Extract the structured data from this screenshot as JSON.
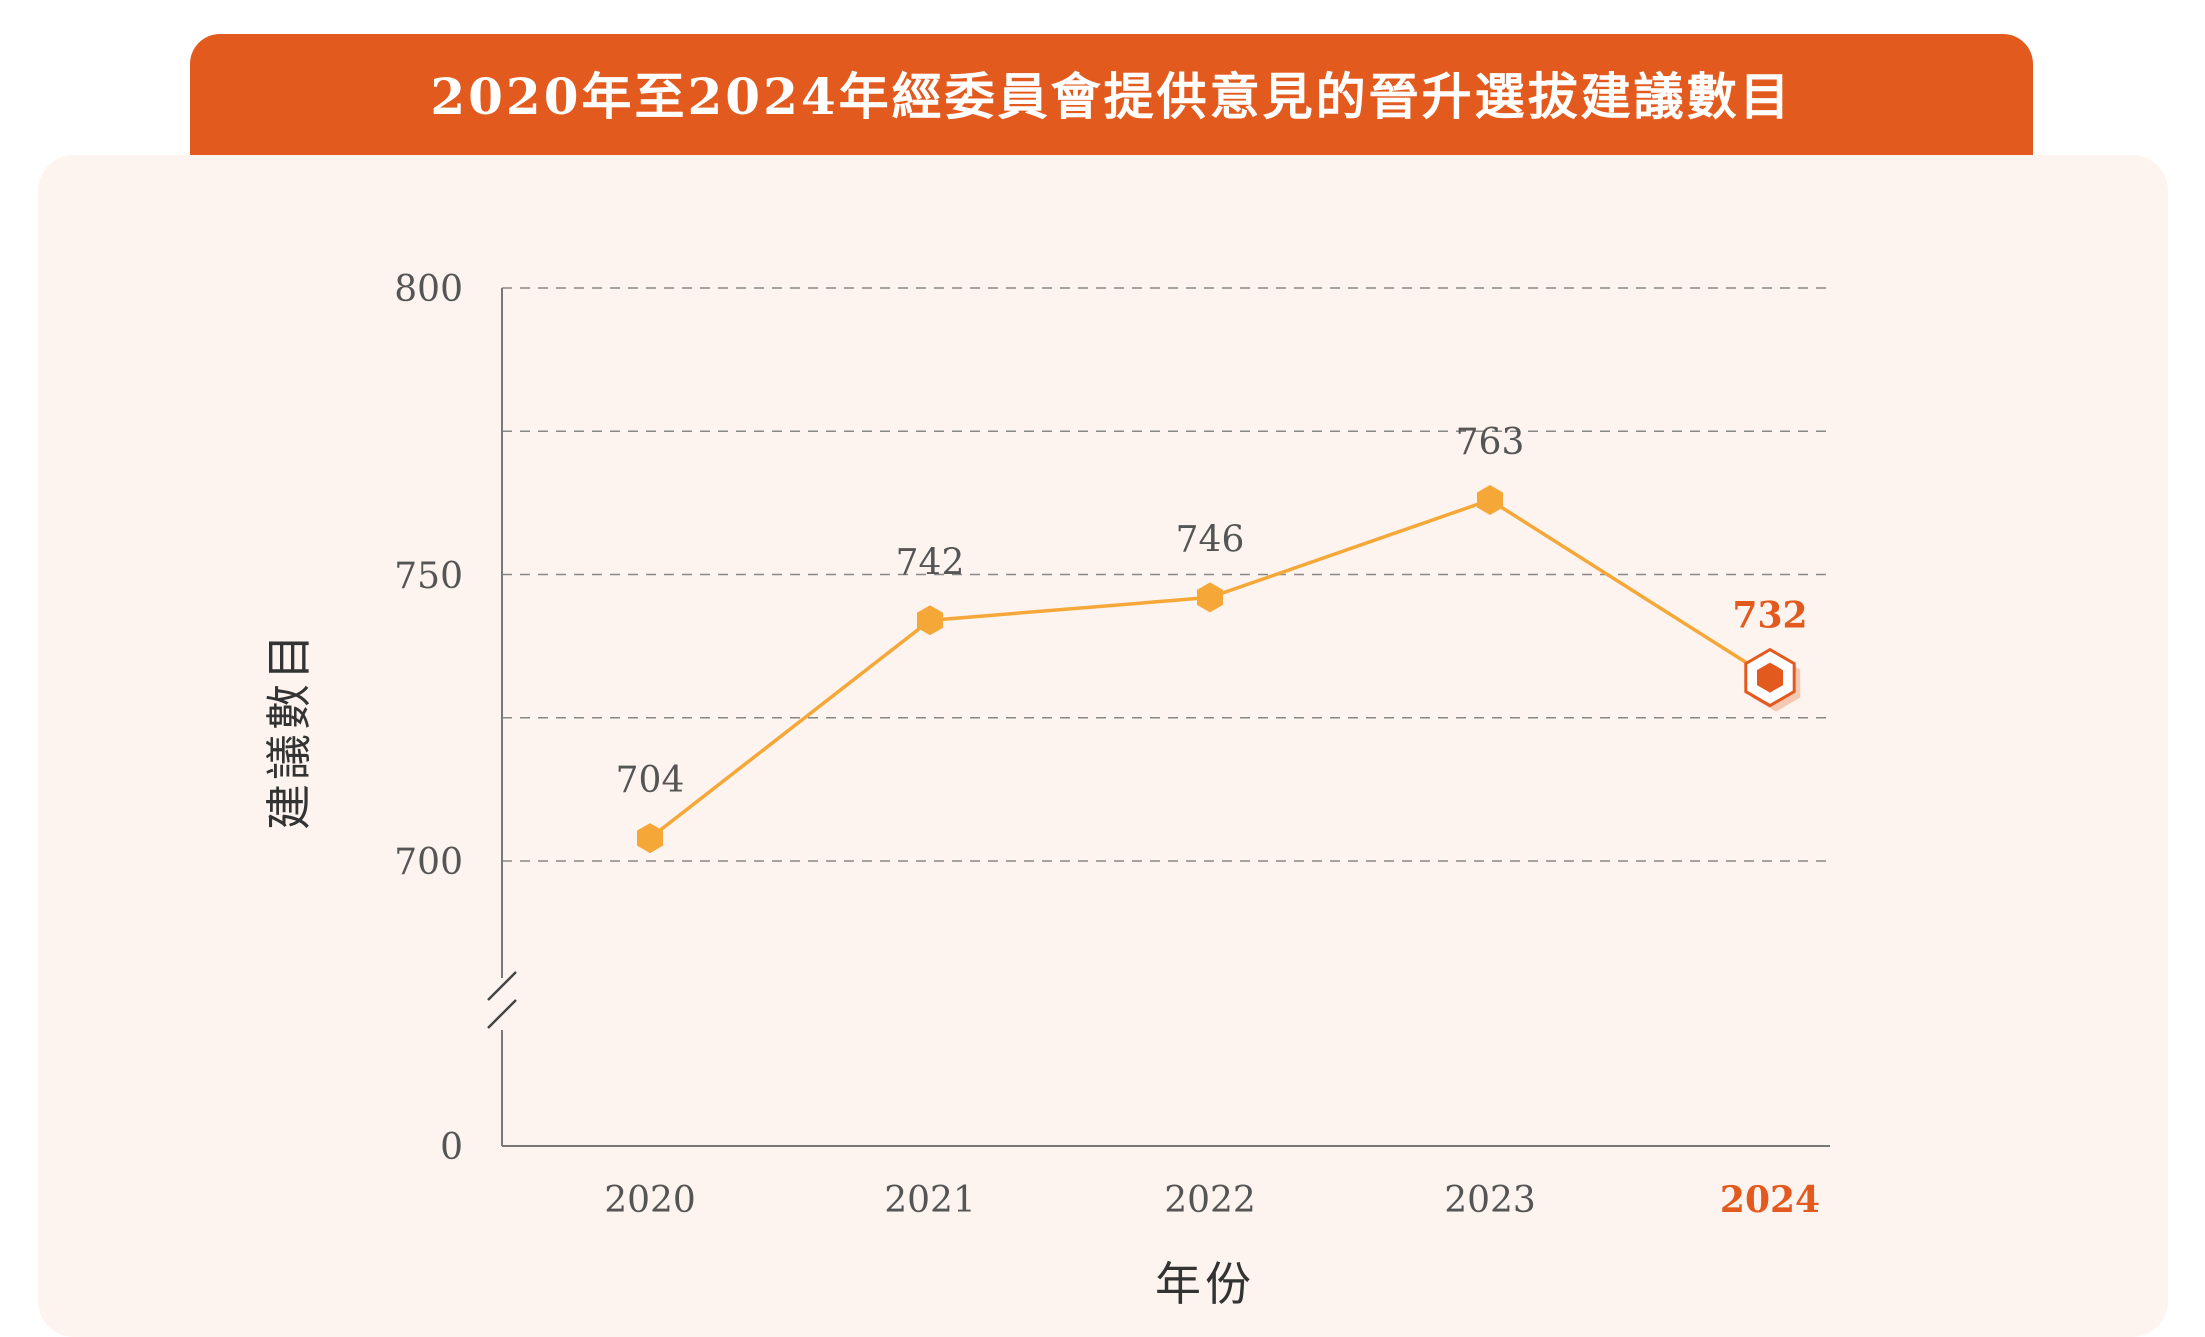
{
  "title": "2020年至2024年經委員會提供意見的晉升選拔建議數目",
  "colors": {
    "accent": "#e35a1f",
    "line": "#f5a738",
    "panel": "#fdf4ef",
    "text": "#555555",
    "grid": "#888888"
  },
  "chart_data": {
    "type": "line",
    "title": "2020年至2024年經委員會提供意見的晉升選拔建議數目",
    "xlabel": "年份",
    "ylabel": "建議數目",
    "categories": [
      "2020",
      "2021",
      "2022",
      "2023",
      "2024"
    ],
    "series": [
      {
        "name": "建議數目",
        "values": [
          704,
          742,
          746,
          763,
          732
        ]
      }
    ],
    "y_ticks": [
      "0",
      "700",
      "750",
      "800"
    ],
    "ylim": [
      680,
      800
    ],
    "axis_break": true,
    "highlight": {
      "category": "2024",
      "value": 732
    },
    "grid": true
  }
}
